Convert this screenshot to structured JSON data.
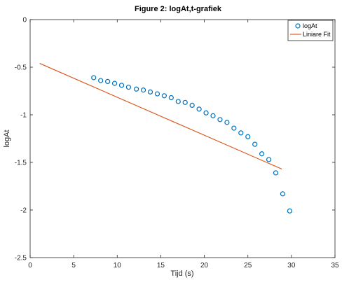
{
  "chart_data": {
    "type": "scatter",
    "title": "Figure 2: logAt,t-grafiek",
    "xlabel": "Tijd (s)",
    "ylabel": "logAt",
    "xlim": [
      0,
      35
    ],
    "ylim": [
      -2.5,
      0
    ],
    "xticks": [
      "0",
      "5",
      "10",
      "15",
      "20",
      "25",
      "30",
      "35"
    ],
    "yticks": [
      "0",
      "-0.5",
      "-1",
      "-1.5",
      "-2",
      "-2.5"
    ],
    "grid": false,
    "legend_position": "top-right",
    "series": [
      {
        "name": "logAt",
        "style": "markers",
        "marker": "circle",
        "color": "#0072BD",
        "x": [
          7.3,
          8.1,
          8.9,
          9.7,
          10.5,
          11.3,
          12.2,
          13.0,
          13.8,
          14.6,
          15.4,
          16.2,
          17.0,
          17.8,
          18.6,
          19.4,
          20.2,
          21.0,
          21.8,
          22.6,
          23.4,
          24.2,
          25.0,
          25.8,
          26.6,
          27.4,
          28.2,
          29.0,
          29.8
        ],
        "y": [
          -0.61,
          -0.64,
          -0.65,
          -0.67,
          -0.69,
          -0.71,
          -0.73,
          -0.74,
          -0.76,
          -0.78,
          -0.8,
          -0.82,
          -0.86,
          -0.87,
          -0.9,
          -0.94,
          -0.98,
          -1.01,
          -1.05,
          -1.08,
          -1.14,
          -1.19,
          -1.23,
          -1.31,
          -1.41,
          -1.47,
          -1.61,
          -1.83,
          -2.01
        ]
      },
      {
        "name": "Liniare Fit",
        "style": "line",
        "color": "#D95319",
        "x": [
          1.1,
          28.9
        ],
        "y": [
          -0.46,
          -1.57
        ]
      }
    ]
  }
}
